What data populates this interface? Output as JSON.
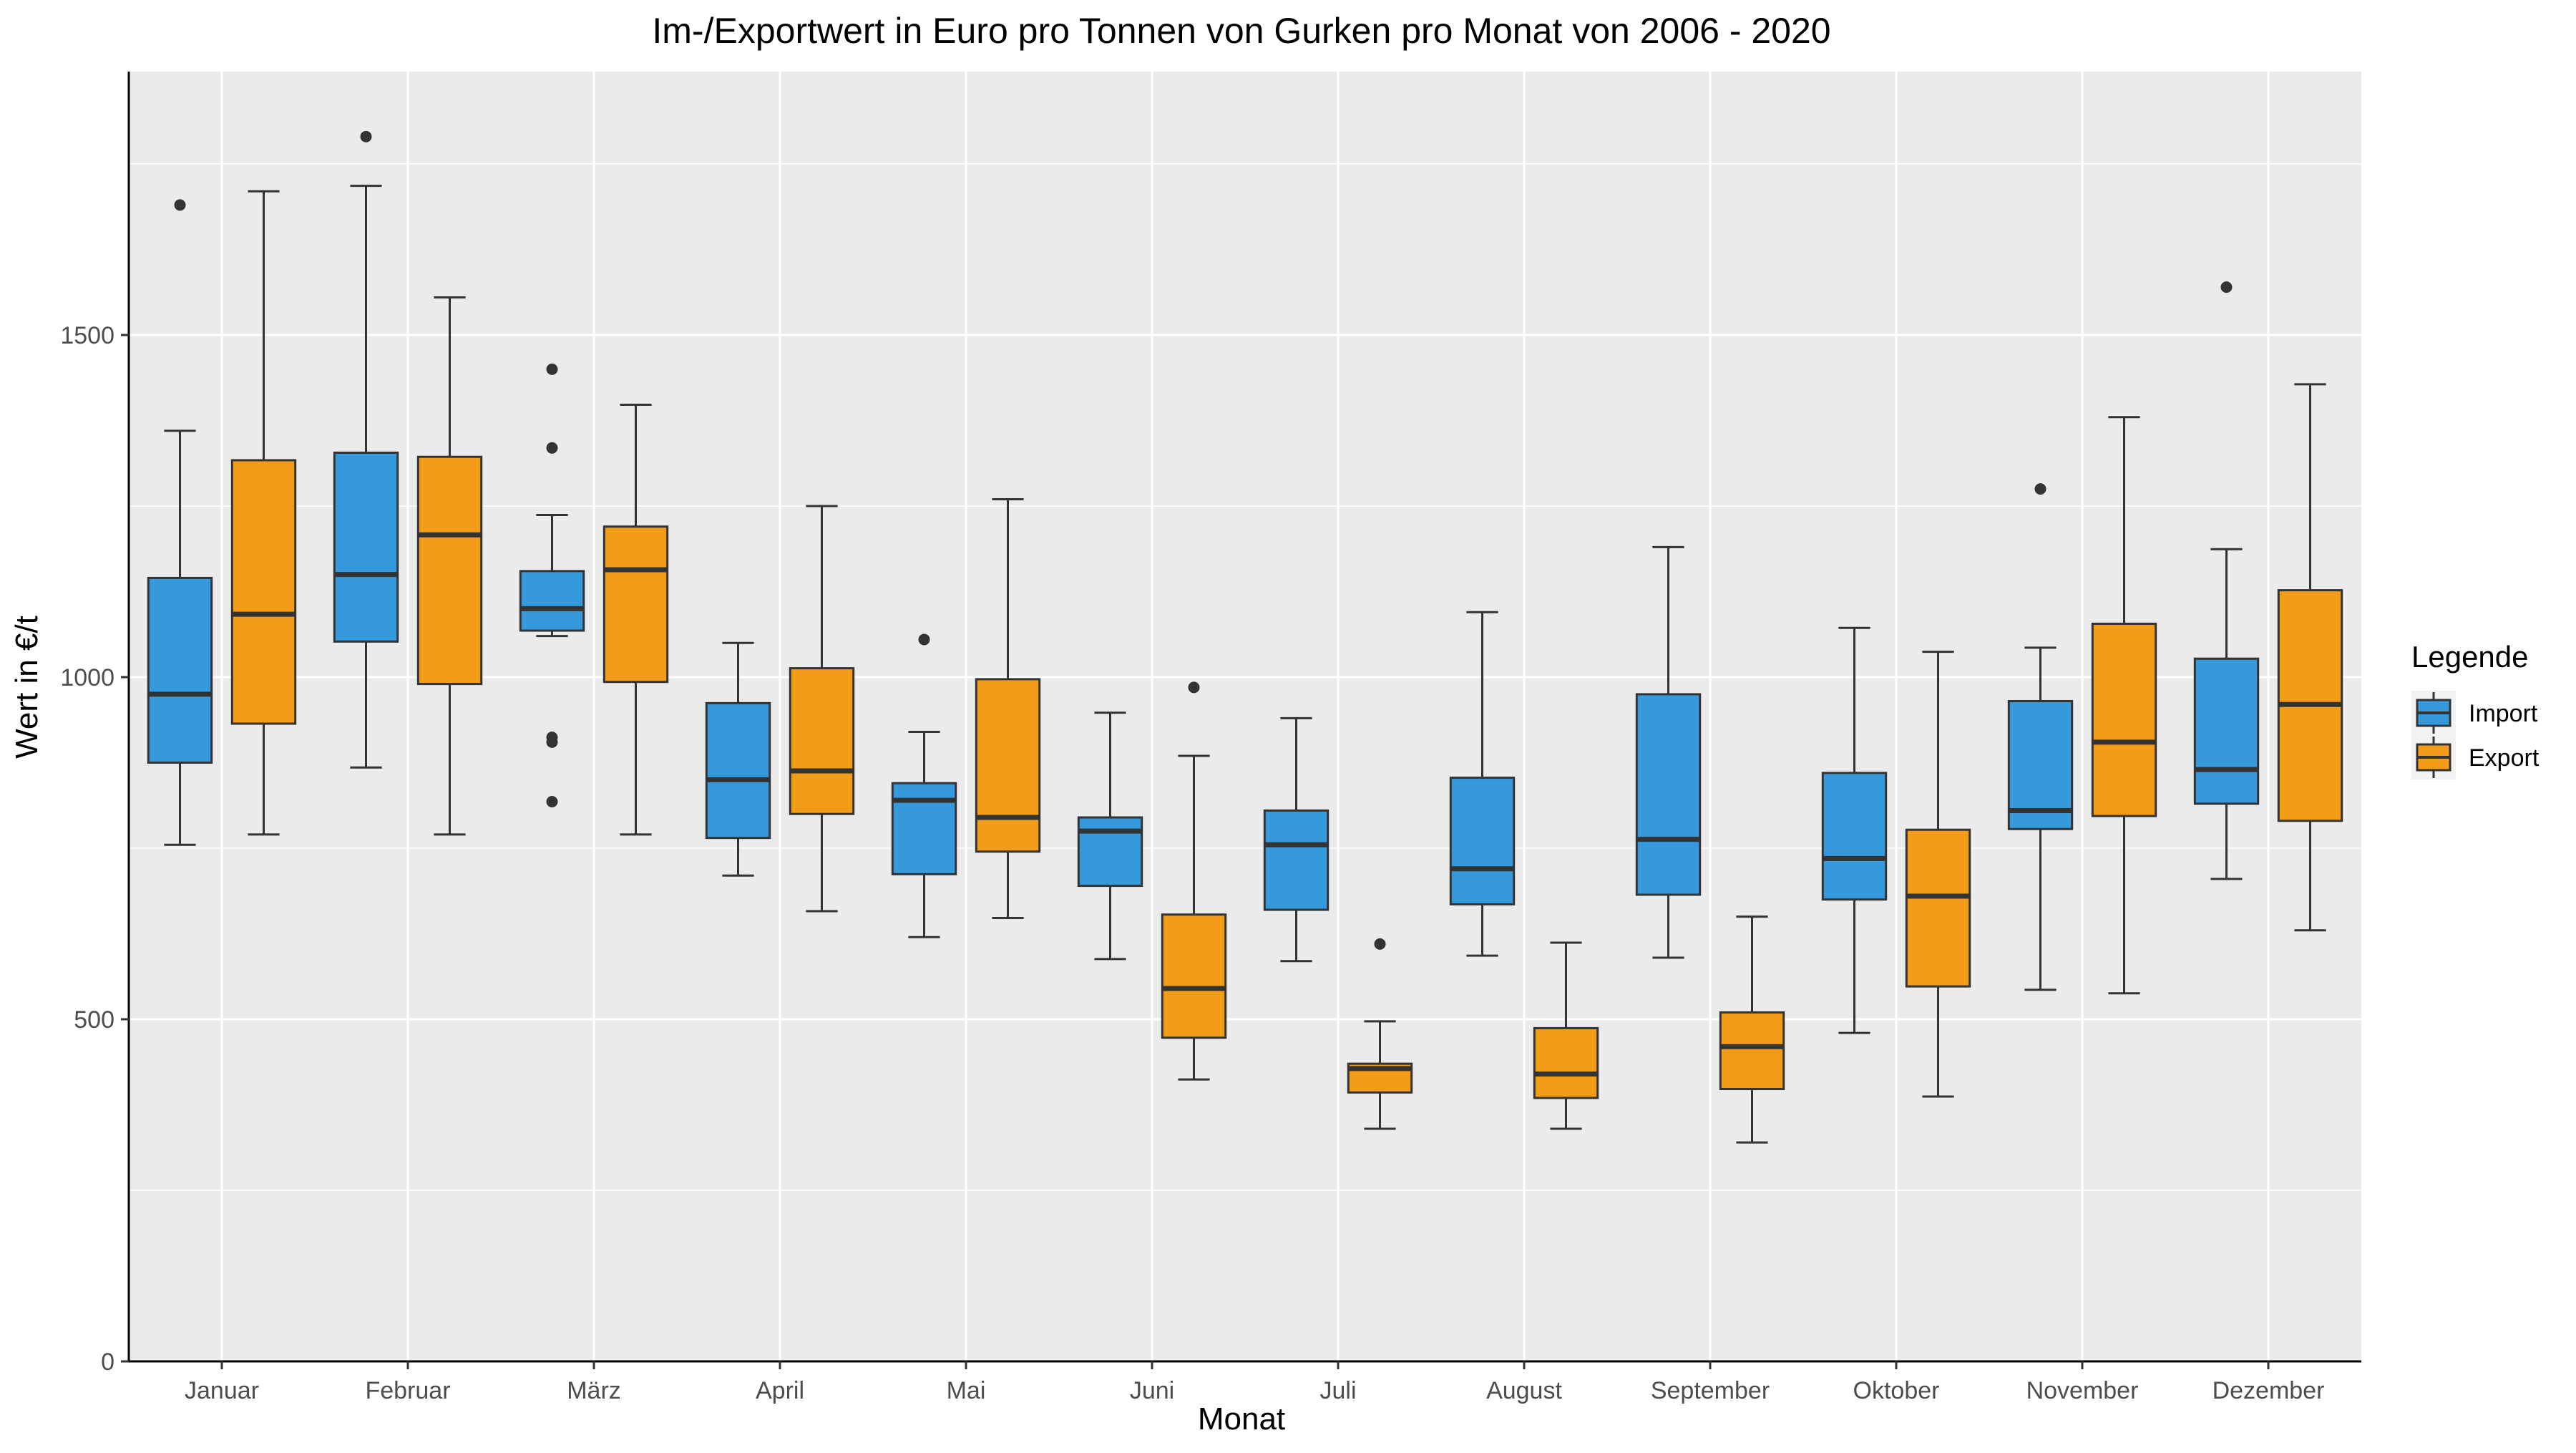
{
  "chart_data": {
    "type": "boxplot",
    "title": "Im-/Exportwert in Euro pro Tonnen von Gurken pro Monat von 2006 - 2020",
    "xlabel": "Monat",
    "ylabel": "Wert in €/t",
    "ylim": [
      0,
      1885
    ],
    "yticks": [
      0,
      500,
      1000,
      1500
    ],
    "grid": true,
    "legend": {
      "title": "Legende",
      "position": "right"
    },
    "categories": [
      "Januar",
      "Februar",
      "März",
      "April",
      "Mai",
      "Juni",
      "Juli",
      "August",
      "September",
      "Oktober",
      "November",
      "Dezember"
    ],
    "series": [
      {
        "name": "Import",
        "color": "#3599dc",
        "boxes": [
          {
            "min": 755,
            "q1": 875,
            "median": 975,
            "q3": 1145,
            "max": 1360,
            "outliers": [
              1690
            ]
          },
          {
            "min": 868,
            "q1": 1052,
            "median": 1150,
            "q3": 1328,
            "max": 1718,
            "outliers": [
              1790
            ]
          },
          {
            "min": 1060,
            "q1": 1068,
            "median": 1100,
            "q3": 1155,
            "max": 1237,
            "outliers": [
              1450,
              1335,
              912,
              905,
              818
            ]
          },
          {
            "min": 710,
            "q1": 765,
            "median": 850,
            "q3": 962,
            "max": 1050,
            "outliers": []
          },
          {
            "min": 620,
            "q1": 712,
            "median": 820,
            "q3": 845,
            "max": 920,
            "outliers": [
              1055
            ]
          },
          {
            "min": 588,
            "q1": 695,
            "median": 775,
            "q3": 795,
            "max": 948,
            "outliers": []
          },
          {
            "min": 585,
            "q1": 660,
            "median": 755,
            "q3": 805,
            "max": 940,
            "outliers": []
          },
          {
            "min": 593,
            "q1": 668,
            "median": 720,
            "q3": 853,
            "max": 1095,
            "outliers": []
          },
          {
            "min": 590,
            "q1": 682,
            "median": 763,
            "q3": 975,
            "max": 1190,
            "outliers": []
          },
          {
            "min": 480,
            "q1": 675,
            "median": 735,
            "q3": 860,
            "max": 1072,
            "outliers": []
          },
          {
            "min": 543,
            "q1": 778,
            "median": 805,
            "q3": 965,
            "max": 1043,
            "outliers": [
              1275
            ]
          },
          {
            "min": 705,
            "q1": 815,
            "median": 865,
            "q3": 1027,
            "max": 1187,
            "outliers": [
              1570
            ]
          }
        ]
      },
      {
        "name": "Export",
        "color": "#f29c1a",
        "boxes": [
          {
            "min": 770,
            "q1": 932,
            "median": 1092,
            "q3": 1317,
            "max": 1710,
            "outliers": []
          },
          {
            "min": 770,
            "q1": 990,
            "median": 1208,
            "q3": 1322,
            "max": 1555,
            "outliers": []
          },
          {
            "min": 770,
            "q1": 993,
            "median": 1157,
            "q3": 1220,
            "max": 1398,
            "outliers": []
          },
          {
            "min": 658,
            "q1": 800,
            "median": 863,
            "q3": 1013,
            "max": 1250,
            "outliers": []
          },
          {
            "min": 648,
            "q1": 745,
            "median": 795,
            "q3": 997,
            "max": 1260,
            "outliers": []
          },
          {
            "min": 412,
            "q1": 473,
            "median": 545,
            "q3": 653,
            "max": 885,
            "outliers": [
              985
            ]
          },
          {
            "min": 340,
            "q1": 393,
            "median": 428,
            "q3": 435,
            "max": 497,
            "outliers": [
              610
            ]
          },
          {
            "min": 340,
            "q1": 385,
            "median": 420,
            "q3": 487,
            "max": 612,
            "outliers": []
          },
          {
            "min": 320,
            "q1": 398,
            "median": 460,
            "q3": 510,
            "max": 650,
            "outliers": []
          },
          {
            "min": 387,
            "q1": 548,
            "median": 680,
            "q3": 777,
            "max": 1037,
            "outliers": []
          },
          {
            "min": 538,
            "q1": 797,
            "median": 905,
            "q3": 1078,
            "max": 1380,
            "outliers": []
          },
          {
            "min": 630,
            "q1": 790,
            "median": 960,
            "q3": 1127,
            "max": 1428,
            "outliers": []
          }
        ]
      }
    ]
  }
}
